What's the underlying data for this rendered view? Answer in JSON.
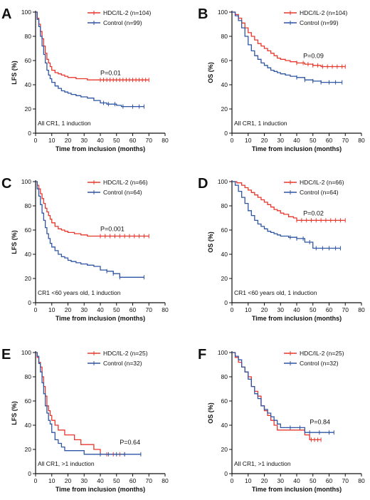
{
  "colors": {
    "hdc": "#e8372c",
    "control": "#2f55a4",
    "axis": "#111111"
  },
  "chart_data": [
    {
      "type": "line",
      "panel": "A",
      "ylabel": "LFS (%)",
      "xlabel": "Time from inclusion (months)",
      "xlim": [
        0,
        80
      ],
      "ylim": [
        0,
        100
      ],
      "xticks": [
        "0",
        "10",
        "20",
        "30",
        "40",
        "50",
        "60",
        "70",
        "80"
      ],
      "yticks": [
        "0",
        "20",
        "40",
        "60",
        "80",
        "100"
      ],
      "pvalue": "P=0.01",
      "pvalue_pos": [
        40,
        48
      ],
      "note": "All CR1, 1 induction",
      "grid": false,
      "legend": "top-right",
      "series": [
        {
          "name": "HDC/IL-2 (n=104)",
          "key": "hdc",
          "x": [
            0,
            1,
            2,
            3,
            4,
            5,
            6,
            7,
            8,
            9,
            10,
            12,
            14,
            16,
            18,
            20,
            22,
            25,
            28,
            32,
            36,
            40,
            70
          ],
          "y": [
            100,
            95,
            90,
            84,
            78,
            72,
            66,
            61,
            58,
            55,
            52,
            50,
            49,
            48,
            47,
            46,
            46,
            45,
            45,
            44,
            44,
            44,
            44
          ],
          "censor_x": [
            40,
            42,
            44,
            46,
            48,
            50,
            52,
            54,
            56,
            58,
            60,
            62,
            64,
            66,
            68,
            70
          ]
        },
        {
          "name": "Control (n=99)",
          "key": "control",
          "x": [
            0,
            1,
            2,
            3,
            4,
            5,
            6,
            7,
            8,
            9,
            10,
            12,
            14,
            16,
            18,
            20,
            22,
            25,
            28,
            32,
            36,
            40,
            44,
            50,
            53,
            67
          ],
          "y": [
            100,
            94,
            88,
            80,
            72,
            65,
            58,
            52,
            48,
            45,
            42,
            39,
            37,
            35,
            34,
            33,
            32,
            31,
            30,
            29,
            27,
            25,
            24,
            23,
            22,
            22
          ],
          "censor_x": [
            42,
            45,
            49,
            54,
            60,
            64,
            67
          ]
        }
      ]
    },
    {
      "type": "line",
      "panel": "B",
      "ylabel": "OS (%)",
      "xlabel": "Time from inclusion (months)",
      "xlim": [
        0,
        80
      ],
      "ylim": [
        0,
        100
      ],
      "xticks": [
        "0",
        "10",
        "20",
        "30",
        "40",
        "50",
        "60",
        "70",
        "80"
      ],
      "yticks": [
        "0",
        "20",
        "40",
        "60",
        "80",
        "100"
      ],
      "pvalue": "P=0.09",
      "pvalue_pos": [
        44,
        62
      ],
      "note": "All CR1, 1 induction",
      "grid": false,
      "legend": "top-right",
      "series": [
        {
          "name": "HDC/IL-2 (n=104)",
          "key": "hdc",
          "x": [
            0,
            2,
            4,
            6,
            8,
            10,
            12,
            14,
            16,
            18,
            20,
            22,
            24,
            26,
            28,
            30,
            33,
            36,
            40,
            45,
            50,
            55,
            70
          ],
          "y": [
            100,
            98,
            95,
            91,
            87,
            83,
            80,
            77,
            74,
            72,
            70,
            68,
            66,
            64,
            62,
            61,
            60,
            59,
            58,
            57,
            56,
            55,
            55
          ],
          "censor_x": [
            40,
            44,
            47,
            50,
            53,
            56,
            59,
            62,
            65,
            68,
            70
          ]
        },
        {
          "name": "Control (n=99)",
          "key": "control",
          "x": [
            0,
            2,
            4,
            6,
            8,
            10,
            12,
            14,
            16,
            18,
            20,
            22,
            24,
            26,
            28,
            30,
            33,
            36,
            40,
            45,
            50,
            55,
            68
          ],
          "y": [
            100,
            97,
            93,
            87,
            80,
            73,
            68,
            64,
            61,
            58,
            56,
            54,
            52,
            51,
            50,
            49,
            48,
            47,
            46,
            44,
            43,
            42,
            42
          ],
          "censor_x": [
            40,
            45,
            50,
            55,
            60,
            64,
            68
          ]
        }
      ]
    },
    {
      "type": "line",
      "panel": "C",
      "ylabel": "LFS (%)",
      "xlabel": "Time from inclusion (months)",
      "xlim": [
        0,
        80
      ],
      "ylim": [
        0,
        100
      ],
      "xticks": [
        "0",
        "10",
        "20",
        "30",
        "40",
        "50",
        "60",
        "70",
        "80"
      ],
      "yticks": [
        "0",
        "20",
        "40",
        "60",
        "80",
        "100"
      ],
      "pvalue": "P=0.001",
      "pvalue_pos": [
        40,
        59
      ],
      "note": "CR1 <60 years old, 1 induction",
      "grid": false,
      "legend": "top-right",
      "series": [
        {
          "name": "HDC/IL-2 (n=66)",
          "key": "hdc",
          "x": [
            0,
            1,
            2,
            3,
            4,
            5,
            6,
            7,
            8,
            9,
            10,
            12,
            14,
            16,
            18,
            20,
            24,
            28,
            32,
            36,
            40,
            70
          ],
          "y": [
            100,
            97,
            94,
            90,
            86,
            82,
            78,
            75,
            72,
            69,
            66,
            63,
            61,
            60,
            59,
            58,
            57,
            56,
            55,
            55,
            55,
            55
          ],
          "censor_x": [
            40,
            43,
            46,
            49,
            52,
            55,
            58,
            61,
            64,
            67,
            70
          ]
        },
        {
          "name": "Control (n=64)",
          "key": "control",
          "x": [
            0,
            1,
            2,
            3,
            4,
            5,
            6,
            7,
            8,
            9,
            10,
            12,
            14,
            16,
            18,
            20,
            22,
            25,
            28,
            32,
            36,
            40,
            44,
            48,
            52,
            67
          ],
          "y": [
            100,
            94,
            88,
            81,
            74,
            68,
            62,
            57,
            53,
            49,
            46,
            43,
            40,
            38,
            37,
            35,
            34,
            33,
            32,
            31,
            30,
            27,
            26,
            24,
            21,
            21
          ],
          "censor_x": [
            44,
            48,
            52,
            67
          ]
        }
      ]
    },
    {
      "type": "line",
      "panel": "D",
      "ylabel": "OS (%)",
      "xlabel": "Time from inclusion (months)",
      "xlim": [
        0,
        80
      ],
      "ylim": [
        0,
        100
      ],
      "xticks": [
        "0",
        "10",
        "20",
        "30",
        "40",
        "50",
        "60",
        "70",
        "80"
      ],
      "yticks": [
        "0",
        "20",
        "40",
        "60",
        "80",
        "100"
      ],
      "pvalue": "P=0.02",
      "pvalue_pos": [
        44,
        72
      ],
      "note": "CR1 <60 years old, 1 induction",
      "grid": false,
      "legend": "top-right",
      "series": [
        {
          "name": "HDC/IL-2 (n=66)",
          "key": "hdc",
          "x": [
            0,
            3,
            6,
            8,
            10,
            12,
            14,
            16,
            18,
            20,
            22,
            24,
            26,
            28,
            30,
            32,
            35,
            38,
            40,
            45,
            70
          ],
          "y": [
            100,
            99,
            97,
            95,
            93,
            91,
            89,
            87,
            85,
            83,
            81,
            79,
            77,
            76,
            74,
            73,
            71,
            70,
            68,
            68,
            68
          ],
          "censor_x": [
            40,
            43,
            46,
            49,
            52,
            55,
            58,
            61,
            64,
            67,
            70
          ]
        },
        {
          "name": "Control (n=64)",
          "key": "control",
          "x": [
            0,
            2,
            4,
            6,
            8,
            10,
            12,
            14,
            16,
            18,
            20,
            22,
            24,
            26,
            28,
            30,
            35,
            40,
            45,
            50,
            55,
            67
          ],
          "y": [
            100,
            97,
            92,
            87,
            82,
            76,
            72,
            68,
            65,
            63,
            61,
            59,
            58,
            57,
            56,
            55,
            54,
            53,
            50,
            45,
            45,
            45
          ],
          "censor_x": [
            36,
            40,
            44,
            48,
            52,
            56,
            60,
            64,
            67
          ]
        }
      ]
    },
    {
      "type": "line",
      "panel": "E",
      "ylabel": "LFS (%)",
      "xlabel": "Time from inclusion (months)",
      "xlim": [
        0,
        80
      ],
      "ylim": [
        0,
        100
      ],
      "xticks": [
        "0",
        "10",
        "20",
        "30",
        "40",
        "50",
        "60",
        "70",
        "80"
      ],
      "yticks": [
        "0",
        "20",
        "40",
        "60",
        "80",
        "100"
      ],
      "pvalue": "P=0.64",
      "pvalue_pos": [
        52,
        24
      ],
      "note": "All CR1, >1 induction",
      "grid": false,
      "legend": "top-right",
      "series": [
        {
          "name": "HDC/IL-2 (n=25)",
          "key": "hdc",
          "x": [
            0,
            1,
            2,
            3,
            4,
            5,
            6,
            7,
            8,
            9,
            10,
            12,
            14,
            16,
            18,
            20,
            24,
            28,
            32,
            36,
            40,
            44,
            50,
            55
          ],
          "y": [
            100,
            96,
            92,
            88,
            80,
            72,
            64,
            56,
            52,
            48,
            44,
            40,
            36,
            36,
            32,
            32,
            28,
            24,
            24,
            20,
            16,
            16,
            16,
            16
          ],
          "censor_x": [
            40,
            44,
            48,
            52,
            55
          ]
        },
        {
          "name": "Control (n=32)",
          "key": "control",
          "x": [
            0,
            1,
            2,
            3,
            4,
            5,
            6,
            7,
            8,
            9,
            10,
            12,
            14,
            16,
            18,
            20,
            25,
            30,
            35,
            40,
            45,
            50,
            55,
            65
          ],
          "y": [
            100,
            97,
            91,
            84,
            75,
            66,
            56,
            50,
            44,
            41,
            34,
            28,
            25,
            22,
            19,
            19,
            19,
            16,
            16,
            16,
            16,
            16,
            16,
            16
          ],
          "censor_x": [
            40,
            45,
            50,
            55,
            65
          ]
        }
      ]
    },
    {
      "type": "line",
      "panel": "F",
      "ylabel": "OS (%)",
      "xlabel": "Time from inclusion (months)",
      "xlim": [
        0,
        80
      ],
      "ylim": [
        0,
        100
      ],
      "xticks": [
        "0",
        "10",
        "20",
        "30",
        "40",
        "50",
        "60",
        "70",
        "80"
      ],
      "yticks": [
        "0",
        "20",
        "40",
        "60",
        "80",
        "100"
      ],
      "pvalue": "P=0.84",
      "pvalue_pos": [
        48,
        41
      ],
      "note": "All CR1, >1 induction",
      "grid": false,
      "legend": "top-right",
      "series": [
        {
          "name": "HDC/IL-2 (n=25)",
          "key": "hdc",
          "x": [
            0,
            2,
            4,
            6,
            8,
            10,
            12,
            14,
            16,
            18,
            20,
            22,
            24,
            26,
            28,
            30,
            35,
            40,
            45,
            48,
            55
          ],
          "y": [
            100,
            96,
            92,
            88,
            84,
            80,
            72,
            68,
            64,
            56,
            52,
            48,
            44,
            40,
            36,
            36,
            36,
            36,
            32,
            28,
            28
          ],
          "censor_x": [
            49,
            51,
            53,
            55
          ]
        },
        {
          "name": "Control (n=32)",
          "key": "control",
          "x": [
            0,
            2,
            4,
            6,
            8,
            10,
            12,
            14,
            16,
            18,
            20,
            22,
            24,
            26,
            28,
            30,
            32,
            36,
            40,
            45,
            50,
            55,
            63
          ],
          "y": [
            100,
            97,
            94,
            88,
            84,
            78,
            72,
            66,
            62,
            56,
            53,
            50,
            47,
            44,
            41,
            38,
            38,
            38,
            38,
            34,
            34,
            34,
            34
          ],
          "censor_x": [
            36,
            42,
            48,
            54,
            60,
            63
          ]
        }
      ]
    }
  ]
}
